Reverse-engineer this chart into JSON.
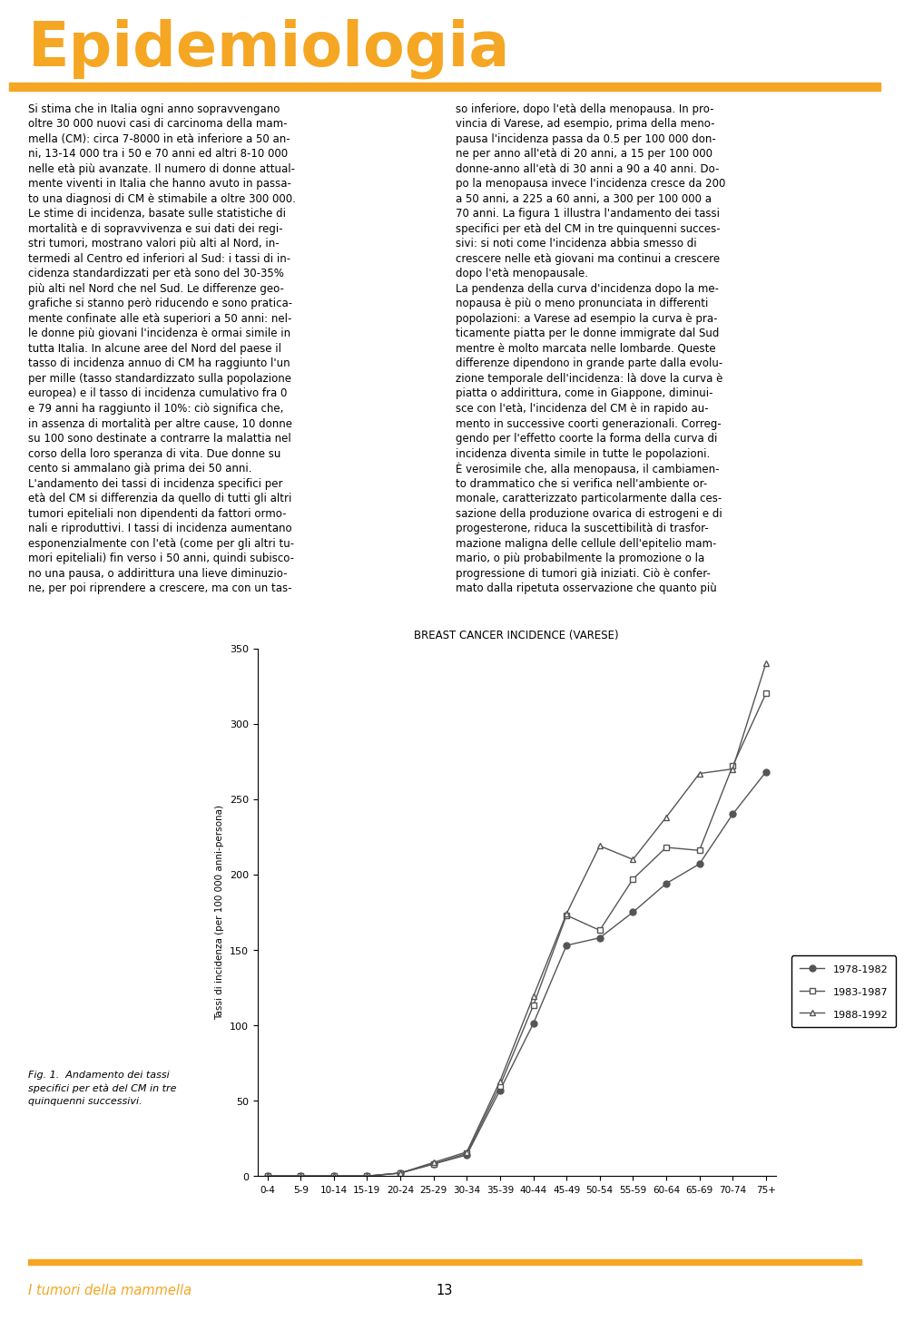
{
  "title": "BREAST CANCER INCIDENCE (VARESE)",
  "header": "Epidemiologia",
  "header_color": "#F5A623",
  "ylabel": "Tassi di incidenza (per 100 000 anni-persona)",
  "age_groups": [
    "0-4",
    "5-9",
    "10-14",
    "15-19",
    "20-24",
    "25-29",
    "30-34",
    "35-39",
    "40-44",
    "45-49",
    "50-54",
    "55-59",
    "60-64",
    "65-69",
    "70-74",
    "75+"
  ],
  "series": [
    {
      "label": "1978-1982",
      "values": [
        0,
        0,
        0,
        0,
        2,
        8,
        14,
        57,
        101,
        153,
        158,
        175,
        194,
        207,
        240,
        268
      ],
      "color": "#555555",
      "marker": "o",
      "markersize": 5
    },
    {
      "label": "1983-1987",
      "values": [
        0,
        0,
        0,
        0,
        2,
        8,
        15,
        60,
        113,
        173,
        163,
        197,
        218,
        216,
        272,
        320
      ],
      "color": "#555555",
      "marker": "s",
      "markersize": 5
    },
    {
      "label": "1988-1992",
      "values": [
        0,
        0,
        0,
        0,
        2,
        9,
        16,
        63,
        119,
        174,
        219,
        210,
        238,
        267,
        270,
        340
      ],
      "color": "#555555",
      "marker": "^",
      "markersize": 5
    }
  ],
  "ylim": [
    0,
    350
  ],
  "yticks": [
    0,
    50,
    100,
    150,
    200,
    250,
    300,
    350
  ],
  "fig_caption": "Fig. 1.  Andamento dei tassi\nspecifici per età del CM in tre\nquinquenni successivi.",
  "footer_text": "I tumori della mammella",
  "footer_color": "#F5A623",
  "page_number": "13",
  "left_col_lines": [
    "Si stima che in Italia ogni anno sopravvengano",
    "oltre 30 000 nuovi casi di carcinoma della mam-",
    "mella (CM): circa 7-8000 in età inferiore a 50 an-",
    "ni, 13-14 000 tra i 50 e 70 anni ed altri 8-10 000",
    "nelle età più avanzate. Il numero di donne attual-",
    "mente viventi in Italia che hanno avuto in passa-",
    "to una diagnosi di CM è stimabile a oltre 300 000.",
    "Le stime di incidenza, basate sulle statistiche di",
    "mortalità e di sopravvivenza e sui dati dei regi-",
    "stri tumori, mostrano valori più alti al Nord, in-",
    "termedi al Centro ed inferiori al Sud: i tassi di in-",
    "cidenza standardizzati per età sono del 30-35%",
    "più alti nel Nord che nel Sud. Le differenze geo-",
    "grafiche si stanno però riducendo e sono pratica-",
    "mente confinate alle età superiori a 50 anni: nel-",
    "le donne più giovani l'incidenza è ormai simile in",
    "tutta Italia. In alcune aree del Nord del paese il",
    "tasso di incidenza annuo di CM ha raggiunto l'un",
    "per mille (tasso standardizzato sulla popolazione",
    "europea) e il tasso di incidenza cumulativo fra 0",
    "e 79 anni ha raggiunto il 10%: ciò significa che,",
    "in assenza di mortalità per altre cause, 10 donne",
    "su 100 sono destinate a contrarre la malattia nel",
    "corso della loro speranza di vita. Due donne su",
    "cento si ammalano già prima dei 50 anni.",
    "L'andamento dei tassi di incidenza specifici per",
    "età del CM si differenzia da quello di tutti gli altri",
    "tumori epiteliali non dipendenti da fattori ormo-",
    "nali e riproduttivi. I tassi di incidenza aumentano",
    "esponenzialmente con l'età (come per gli altri tu-",
    "mori epiteliali) fin verso i 50 anni, quindi subisco-",
    "no una pausa, o addirittura una lieve diminuzio-",
    "ne, per poi riprendere a crescere, ma con un tas-"
  ],
  "right_col_lines": [
    "so inferiore, dopo l'età della menopausa. In pro-",
    "vincia di Varese, ad esempio, prima della meno-",
    "pausa l'incidenza passa da 0.5 per 100 000 don-",
    "ne per anno all'età di 20 anni, a 15 per 100 000",
    "donne-anno all'età di 30 anni a 90 a 40 anni. Do-",
    "po la menopausa invece l'incidenza cresce da 200",
    "a 50 anni, a 225 a 60 anni, a 300 per 100 000 a",
    "70 anni. La figura 1 illustra l'andamento dei tassi",
    "specifici per età del CM in tre quinquenni succes-",
    "sivi: si noti come l'incidenza abbia smesso di",
    "crescere nelle età giovani ma continui a crescere",
    "dopo l'età menopausale.",
    "La pendenza della curva d'incidenza dopo la me-",
    "nopausa è più o meno pronunciata in differenti",
    "popolazioni: a Varese ad esempio la curva è pra-",
    "ticamente piatta per le donne immigrate dal Sud",
    "mentre è molto marcata nelle lombarde. Queste",
    "differenze dipendono in grande parte dalla evolu-",
    "zione temporale dell'incidenza: là dove la curva è",
    "piatta o addirittura, come in Giappone, diminui-",
    "sce con l'età, l'incidenza del CM è in rapido au-",
    "mento in successive coorti generazionali. Correg-",
    "gendo per l'effetto coorte la forma della curva di",
    "incidenza diventa simile in tutte le popolazioni.",
    "È verosimile che, alla menopausa, il cambiamen-",
    "to drammatico che si verifica nell'ambiente or-",
    "monale, caratterizzato particolarmente dalla ces-",
    "sazione della produzione ovarica di estrogeni e di",
    "progesterone, riduca la suscettibilità di trasfor-",
    "mazione maligna delle cellule dell'epitelio mam-",
    "mario, o più probabilmente la promozione o la",
    "progressione di tumori già iniziati. Ciò è confer-",
    "mato dalla ripetuta osservazione che quanto più"
  ]
}
